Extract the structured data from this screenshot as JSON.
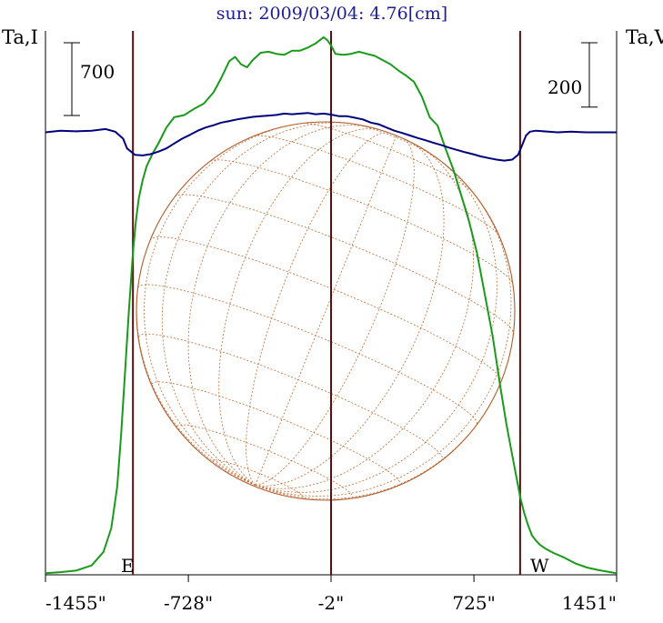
{
  "chart_data": {
    "type": "line",
    "title": "sun: 2009/03/04: 4.76[cm]",
    "left_axis_label": "Ta,I",
    "right_axis_label": "Ta,V",
    "x_unit": "arcsec",
    "xlim": [
      -1455,
      1451
    ],
    "x_ticks": [
      {
        "value": -1455,
        "label": "-1455\""
      },
      {
        "value": -728,
        "label": "-728\""
      },
      {
        "value": -2,
        "label": "-2\""
      },
      {
        "value": 725,
        "label": "725\""
      },
      {
        "value": 1451,
        "label": "1451\""
      }
    ],
    "vertical_lines": [
      -1010,
      -2,
      960
    ],
    "limb_labels": {
      "east": "E",
      "west": "W"
    },
    "scale_bars": [
      {
        "side": "left",
        "label": "700",
        "value": 700
      },
      {
        "side": "right",
        "label": "200",
        "value": 200
      }
    ],
    "series": [
      {
        "axis": "left",
        "color": "#1a9a1a",
        "ylim": [
          0,
          5230
        ],
        "x": [
          -1455,
          -1380,
          -1300,
          -1220,
          -1160,
          -1120,
          -1090,
          -1070,
          -1050,
          -1030,
          -1010,
          -995,
          -980,
          -960,
          -940,
          -910,
          -880,
          -840,
          -800,
          -750,
          -700,
          -650,
          -600,
          -560,
          -520,
          -490,
          -460,
          -430,
          -400,
          -360,
          -320,
          -280,
          -240,
          -200,
          -160,
          -120,
          -80,
          -40,
          -20,
          -2,
          20,
          60,
          100,
          140,
          180,
          220,
          260,
          300,
          340,
          380,
          420,
          460,
          500,
          540,
          580,
          620,
          660,
          700,
          740,
          780,
          820,
          860,
          890,
          920,
          940,
          960,
          980,
          1000,
          1020,
          1040,
          1060,
          1090,
          1130,
          1180,
          1240,
          1300,
          1360,
          1420,
          1451
        ],
        "y": [
          15,
          25,
          40,
          90,
          220,
          450,
          850,
          1350,
          1950,
          2550,
          3100,
          3400,
          3620,
          3800,
          3930,
          4050,
          4150,
          4300,
          4400,
          4420,
          4480,
          4530,
          4640,
          4780,
          4940,
          4980,
          4910,
          4880,
          4950,
          5020,
          5030,
          5010,
          5000,
          5040,
          5040,
          5070,
          5110,
          5170,
          5140,
          5090,
          5010,
          5000,
          5010,
          5030,
          5010,
          4990,
          4950,
          4910,
          4850,
          4800,
          4740,
          4600,
          4400,
          4320,
          4100,
          3900,
          3650,
          3400,
          3100,
          2700,
          2300,
          1800,
          1450,
          1150,
          950,
          750,
          600,
          480,
          380,
          330,
          290,
          250,
          210,
          170,
          110,
          70,
          45,
          25,
          15
        ]
      },
      {
        "axis": "right",
        "color": "#00007f",
        "ylim": [
          -1375,
          315
        ],
        "x": [
          -1455,
          -1380,
          -1300,
          -1220,
          -1150,
          -1100,
          -1060,
          -1040,
          -1020,
          -1000,
          -960,
          -920,
          -880,
          -840,
          -800,
          -760,
          -720,
          -680,
          -640,
          -600,
          -560,
          -520,
          -480,
          -440,
          -400,
          -360,
          -320,
          -280,
          -240,
          -200,
          -160,
          -120,
          -80,
          -40,
          -2,
          40,
          80,
          120,
          160,
          200,
          240,
          280,
          320,
          360,
          400,
          440,
          480,
          520,
          560,
          600,
          640,
          680,
          720,
          760,
          800,
          840,
          880,
          920,
          950,
          970,
          990,
          1010,
          1040,
          1080,
          1150,
          1220,
          1300,
          1380,
          1451
        ],
        "y": [
          0,
          5,
          3,
          5,
          10,
          2,
          -20,
          -50,
          -60,
          -70,
          -72,
          -68,
          -60,
          -50,
          -35,
          -20,
          -8,
          5,
          15,
          22,
          30,
          35,
          40,
          44,
          48,
          50,
          52,
          54,
          58,
          56,
          58,
          60,
          56,
          58,
          55,
          50,
          50,
          45,
          40,
          30,
          25,
          15,
          5,
          -2,
          -10,
          -18,
          -25,
          -33,
          -40,
          -48,
          -55,
          -62,
          -68,
          -75,
          -80,
          -85,
          -88,
          -85,
          -70,
          -40,
          -10,
          2,
          5,
          3,
          0,
          2,
          0,
          0,
          0
        ]
      }
    ]
  }
}
